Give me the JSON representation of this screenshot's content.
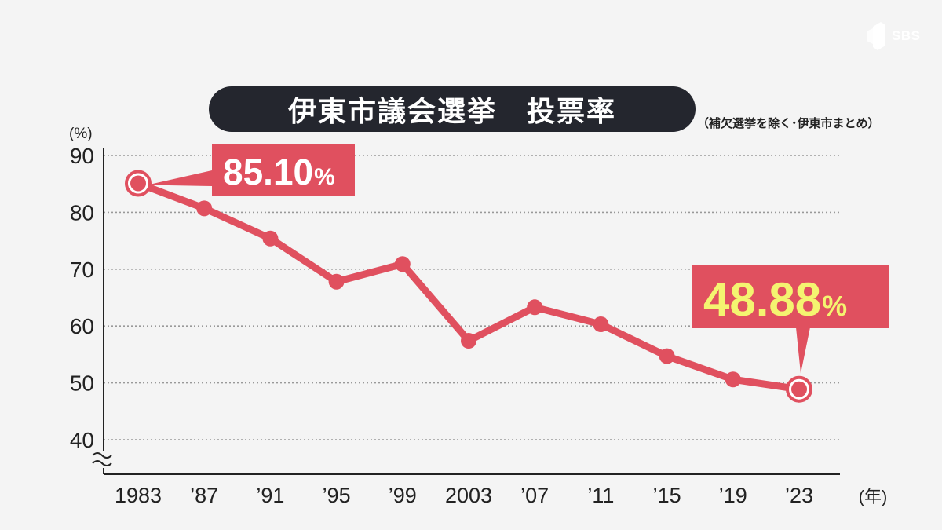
{
  "brand": {
    "label": "SBS",
    "logo_icon": "sbs-logo-icon"
  },
  "title": "伊東市議会選挙　投票率",
  "subtitle": "（補欠選挙を除く･伊東市まとめ）",
  "colors": {
    "line": "#e0505f",
    "callout": "#e0505f",
    "callout_first_text": "#ffffff",
    "callout_last_text": "#f4f470",
    "title_bg": "#24262e",
    "axis": "#222222",
    "grid": "#999999",
    "background": "#f4f4f4"
  },
  "chart_data": {
    "type": "line",
    "title": "伊東市議会選挙　投票率",
    "ylabel": "(%)",
    "xlabel": "(年)",
    "ylim": [
      40,
      90
    ],
    "yticks": [
      90,
      80,
      70,
      60,
      50,
      40
    ],
    "y_axis_break": true,
    "grid": true,
    "gridline_style": "dotted",
    "categories": [
      "1983",
      "’87",
      "’91",
      "’95",
      "’99",
      "2003",
      "’07",
      "’11",
      "’15",
      "’19",
      "’23"
    ],
    "series": [
      {
        "values": [
          85.1,
          80.7,
          75.4,
          67.8,
          70.9,
          57.4,
          63.3,
          60.3,
          54.7,
          50.6,
          48.88
        ]
      }
    ],
    "callouts": [
      {
        "point_index": 0,
        "label": "85.10",
        "unit": "%"
      },
      {
        "point_index": 10,
        "label": "48.88",
        "unit": "%"
      }
    ]
  }
}
